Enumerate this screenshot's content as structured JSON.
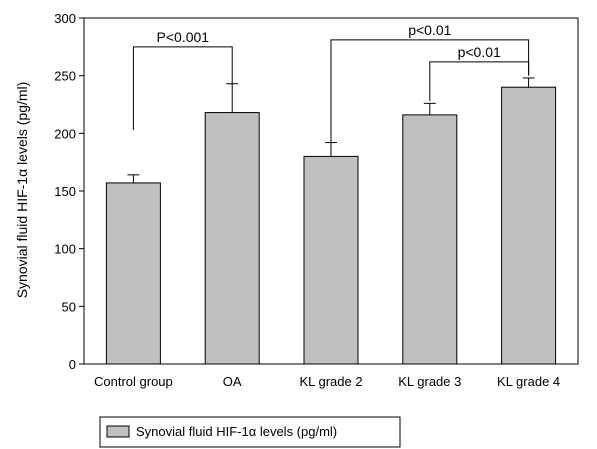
{
  "chart_data": {
    "type": "bar",
    "ylabel": "Synovial fluid HIF-1α levels (pg/ml)",
    "ylim": [
      0,
      300
    ],
    "yticks": [
      0,
      50,
      100,
      150,
      200,
      250,
      300
    ],
    "categories": [
      "Control group",
      "OA",
      "KL grade 2",
      "KL grade 3",
      "KL grade 4"
    ],
    "series": [
      {
        "name": "Synovial fluid HIF-1α levels (pg/ml)",
        "values": [
          157,
          218,
          180,
          216,
          240
        ],
        "error": [
          7,
          25,
          12,
          10,
          8
        ]
      }
    ],
    "bar_color": "#c0c0c0",
    "grid": false,
    "legend_position": "bottom-left",
    "annotations": [
      {
        "text": "P<0.001",
        "from": 0,
        "to": 1,
        "level": 275,
        "left_drop": 203,
        "right_drop": 242
      },
      {
        "text": "p<0.01",
        "from": 2,
        "to": 4,
        "level": 281,
        "left_drop": 192,
        "right_drop": 250
      },
      {
        "text": "p<0.01",
        "from": 3,
        "to": 4,
        "level": 262,
        "left_drop": 228,
        "right_drop": 250
      }
    ]
  }
}
